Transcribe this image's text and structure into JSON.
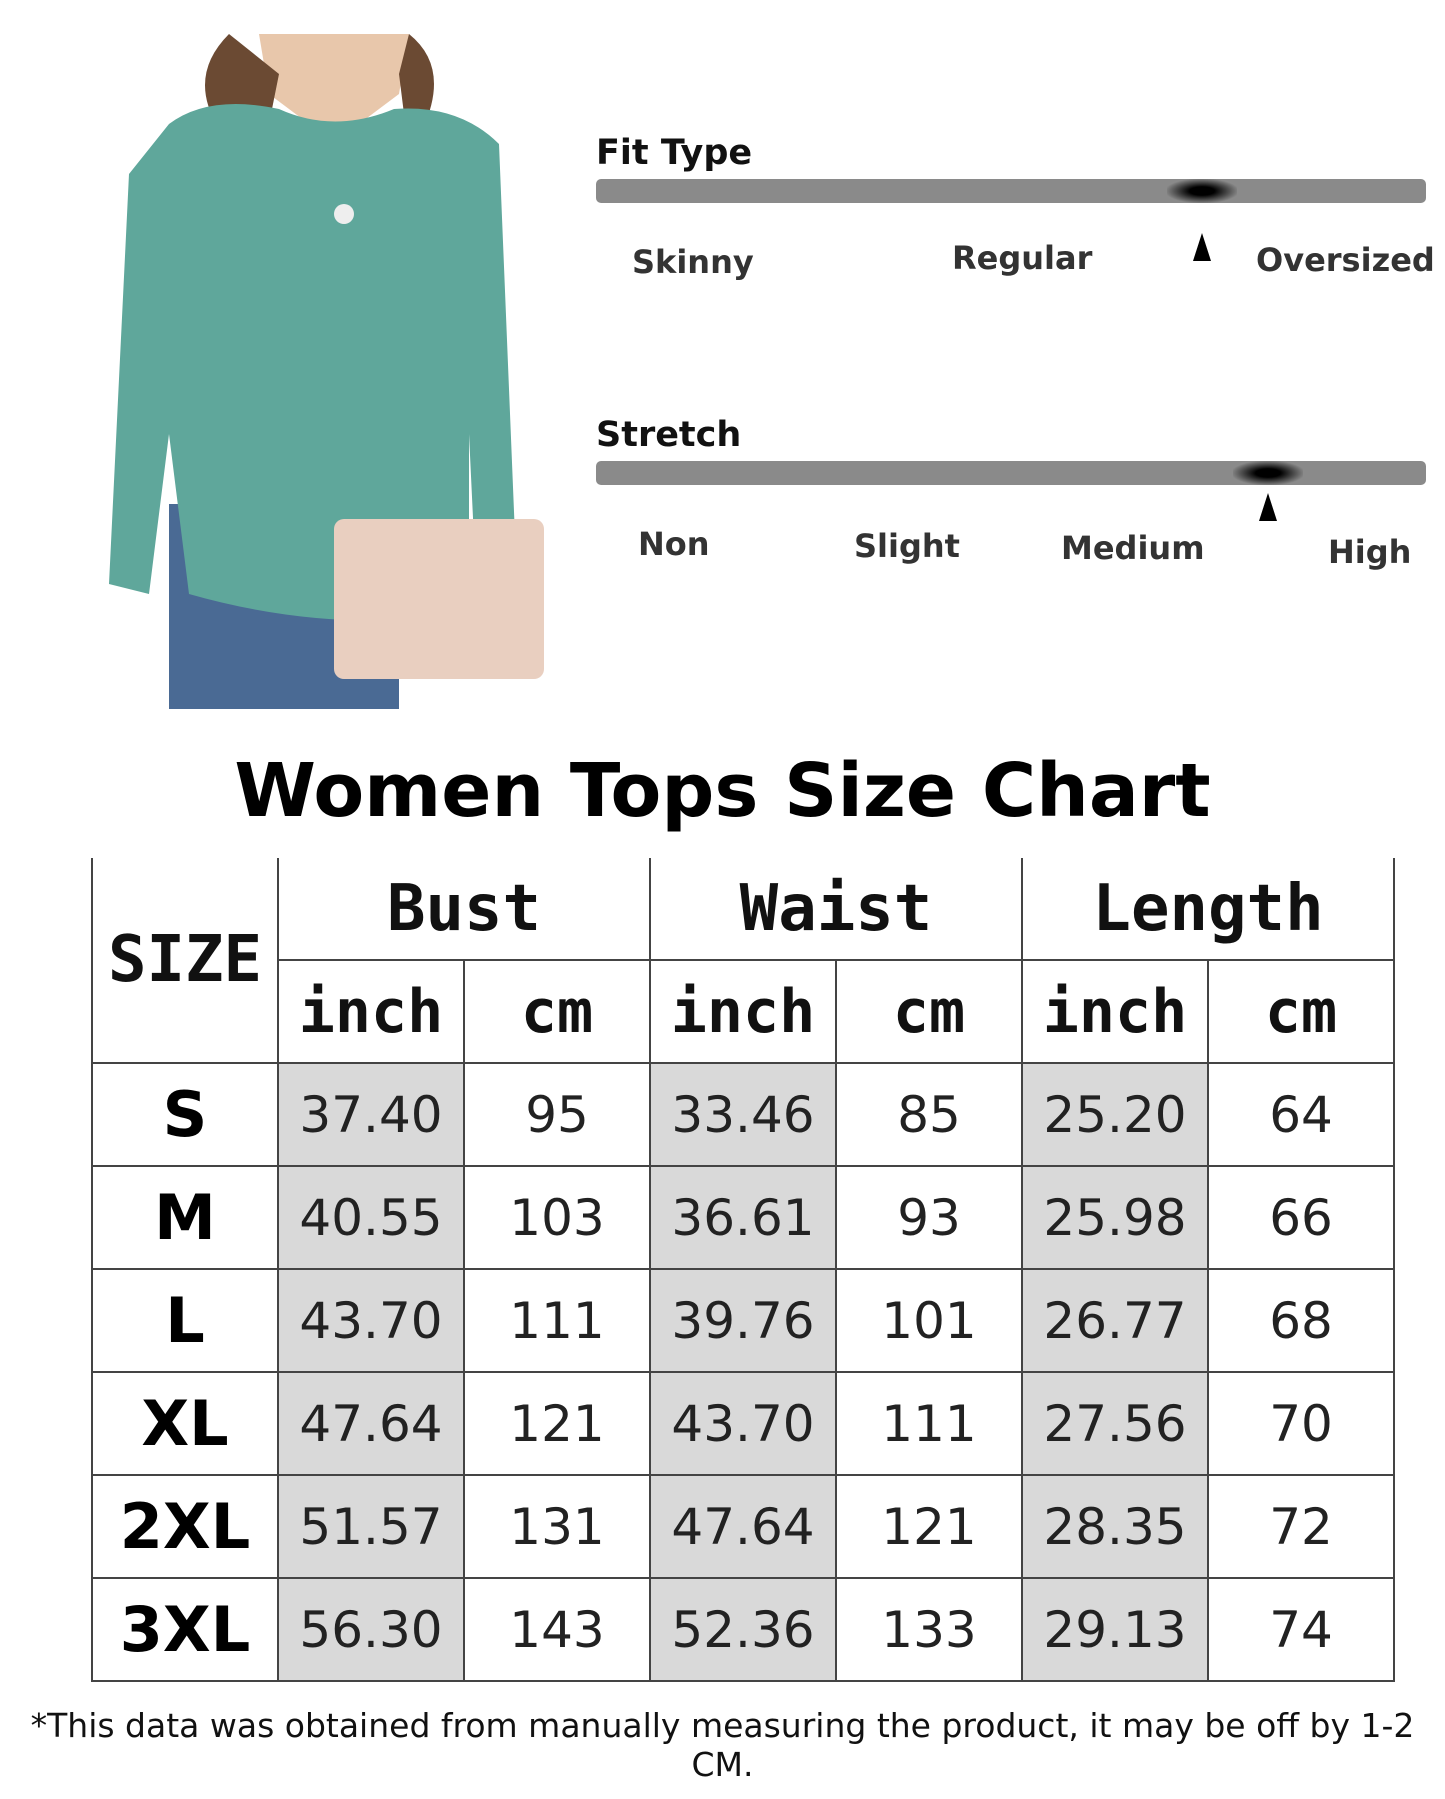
{
  "fit_type": {
    "title": "Fit Type",
    "labels": [
      "Skinny",
      "Regular",
      "Oversized"
    ],
    "level": 0.73
  },
  "stretch": {
    "title": "Stretch",
    "labels": [
      "Non",
      "Slight",
      "Medium",
      "High"
    ],
    "level": 0.81
  },
  "colors": {
    "bar": "#8a8a8a",
    "shaded_cell": "#d9d9d9",
    "shirt": "#5fa79b"
  },
  "size_chart": {
    "title": "Women Tops Size Chart",
    "size_header": "SIZE",
    "groups": [
      "Bust",
      "Waist",
      "Length"
    ],
    "units": [
      "inch",
      "cm",
      "inch",
      "cm",
      "inch",
      "cm"
    ],
    "rows": [
      {
        "size": "S",
        "values": [
          "37.40",
          "95",
          "33.46",
          "85",
          "25.20",
          "64"
        ]
      },
      {
        "size": "M",
        "values": [
          "40.55",
          "103",
          "36.61",
          "93",
          "25.98",
          "66"
        ]
      },
      {
        "size": "L",
        "values": [
          "43.70",
          "111",
          "39.76",
          "101",
          "26.77",
          "68"
        ]
      },
      {
        "size": "XL",
        "values": [
          "47.64",
          "121",
          "43.70",
          "111",
          "27.56",
          "70"
        ]
      },
      {
        "size": "2XL",
        "values": [
          "51.57",
          "131",
          "47.64",
          "121",
          "28.35",
          "72"
        ]
      },
      {
        "size": "3XL",
        "values": [
          "56.30",
          "143",
          "52.36",
          "133",
          "29.13",
          "74"
        ]
      }
    ],
    "note": "*This data was obtained from manually measuring the product, it may be off by 1-2 CM."
  }
}
